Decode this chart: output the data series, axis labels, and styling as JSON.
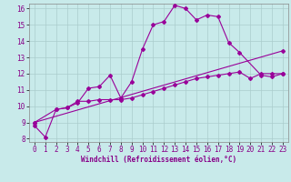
{
  "line1_x": [
    0,
    1,
    2,
    3,
    4,
    5,
    6,
    7,
    8,
    9,
    10,
    11,
    12,
    13,
    14,
    15,
    16,
    17,
    18,
    19,
    21,
    22,
    23
  ],
  "line1_y": [
    8.8,
    8.1,
    9.8,
    9.9,
    10.2,
    11.1,
    11.2,
    11.9,
    10.5,
    11.5,
    13.5,
    15.0,
    15.2,
    16.2,
    16.0,
    15.3,
    15.6,
    15.5,
    13.9,
    13.3,
    11.9,
    11.8,
    12.0
  ],
  "line2_x": [
    0,
    23
  ],
  "line2_y": [
    9.0,
    13.4
  ],
  "line3_x": [
    0,
    2,
    3,
    4,
    5,
    6,
    7,
    8,
    9,
    10,
    11,
    12,
    13,
    14,
    15,
    16,
    17,
    18,
    19,
    20,
    21,
    22,
    23
  ],
  "line3_y": [
    9.0,
    9.8,
    9.9,
    10.3,
    10.3,
    10.4,
    10.4,
    10.4,
    10.5,
    10.7,
    10.9,
    11.1,
    11.3,
    11.5,
    11.7,
    11.8,
    11.9,
    12.0,
    12.1,
    11.7,
    12.0,
    12.0,
    12.0
  ],
  "line_color": "#990099",
  "bg_color": "#c8eaea",
  "grid_color": "#aacccc",
  "xlabel": "Windchill (Refroidissement éolien,°C)",
  "xlim": [
    -0.5,
    23.5
  ],
  "ylim": [
    7.8,
    16.3
  ],
  "xticks": [
    0,
    1,
    2,
    3,
    4,
    5,
    6,
    7,
    8,
    9,
    10,
    11,
    12,
    13,
    14,
    15,
    16,
    17,
    18,
    19,
    20,
    21,
    22,
    23
  ],
  "yticks": [
    8,
    9,
    10,
    11,
    12,
    13,
    14,
    15,
    16
  ],
  "marker": "D",
  "marker_size": 2,
  "line_width": 0.8,
  "tick_fontsize": 5.5,
  "xlabel_fontsize": 5.5
}
